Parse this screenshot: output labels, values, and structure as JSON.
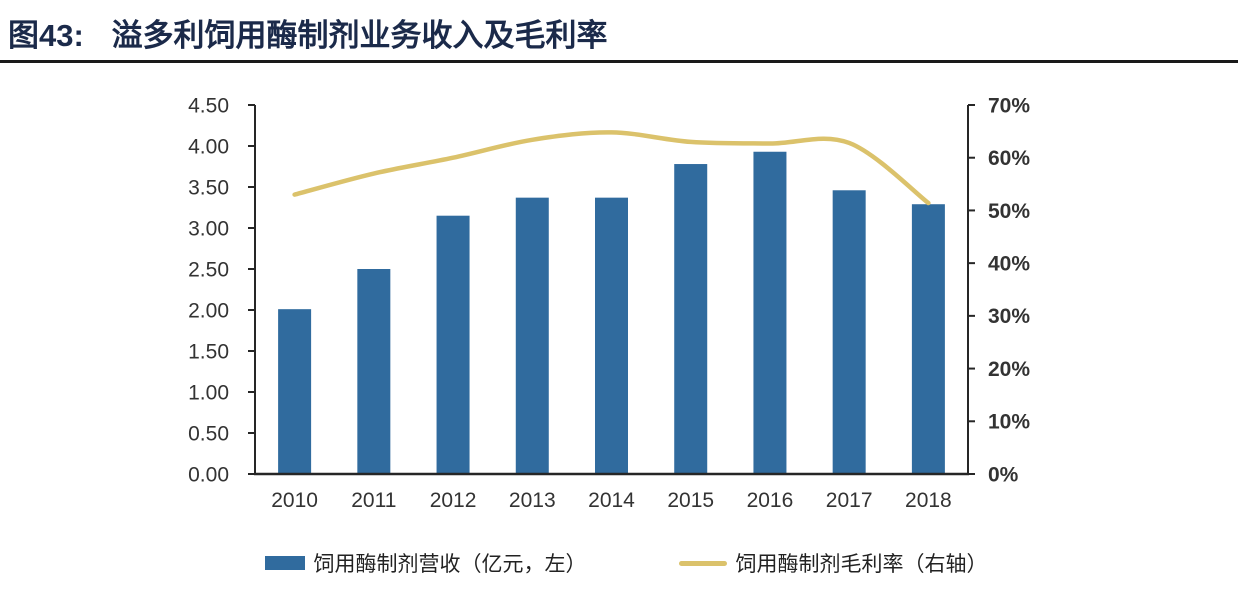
{
  "title": {
    "prefix": "图43:",
    "text": "溢多利饲用酶制剂业务收入及毛利率"
  },
  "colors": {
    "bar": "#306B9E",
    "line": "#DBC26B",
    "title": "#1B2A4A",
    "divider": "#1A1A1A",
    "axis_line": "#262626",
    "tick_text": "#333333"
  },
  "chart_data": {
    "type": "bar+line",
    "title": "溢多利饲用酶制剂业务收入及毛利率",
    "categories": [
      "2010",
      "2011",
      "2012",
      "2013",
      "2014",
      "2015",
      "2016",
      "2017",
      "2018"
    ],
    "series": [
      {
        "name": "饲用酶制剂营收（亿元，左）",
        "type": "bar",
        "axis": "left",
        "values": [
          2.01,
          2.5,
          3.15,
          3.37,
          3.37,
          3.78,
          3.93,
          3.46,
          3.29
        ]
      },
      {
        "name": "饲用酶制剂毛利率（右轴）",
        "type": "line",
        "axis": "right",
        "values": [
          53,
          57,
          60,
          63.4,
          64.8,
          63,
          62.7,
          62.8,
          51.4
        ]
      }
    ],
    "left_axis": {
      "min": 0,
      "max": 4.5,
      "step": 0.5,
      "tick_labels": [
        "0.00",
        "0.50",
        "1.00",
        "1.50",
        "2.00",
        "2.50",
        "3.00",
        "3.50",
        "4.00",
        "4.50"
      ]
    },
    "right_axis": {
      "min": 0,
      "max": 70,
      "step": 10,
      "tick_labels": [
        "0%",
        "10%",
        "20%",
        "30%",
        "40%",
        "50%",
        "60%",
        "70%"
      ]
    },
    "grid": false,
    "legend_position": "bottom"
  }
}
